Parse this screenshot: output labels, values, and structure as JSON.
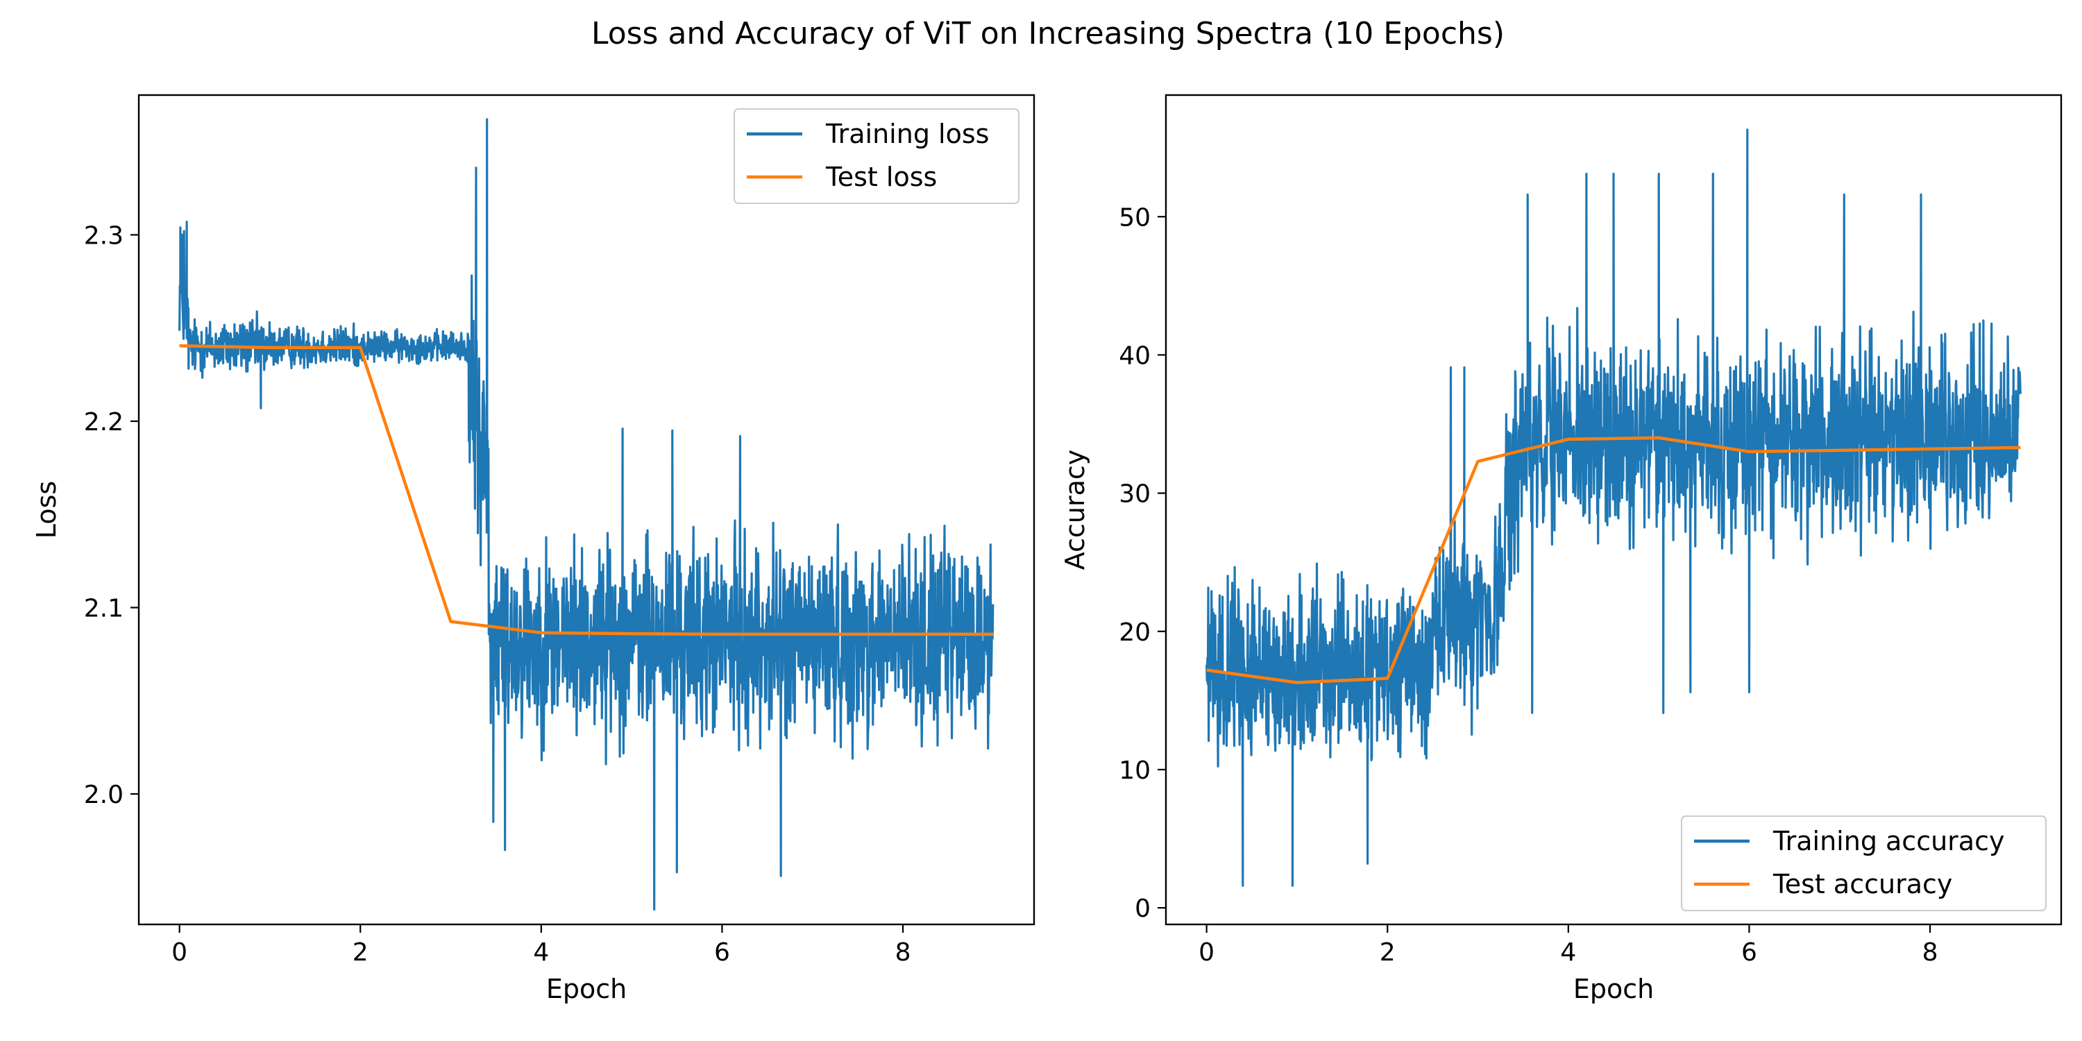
{
  "figure": {
    "title": "Loss and Accuracy of ViT on Increasing Spectra (10 Epochs)"
  },
  "colors": {
    "train": "#1f77b4",
    "test": "#ff7f0e"
  },
  "chart_data": [
    {
      "type": "line",
      "title": "",
      "xlabel": "Epoch",
      "ylabel": "Loss",
      "xlim": [
        -0.45,
        9.45
      ],
      "ylim": [
        1.93,
        2.375
      ],
      "xticks": [
        0,
        2,
        4,
        6,
        8
      ],
      "yticks": [
        2.0,
        2.1,
        2.2,
        2.3
      ],
      "ytick_labels": [
        "2.0",
        "2.1",
        "2.2",
        "2.3"
      ],
      "grid": false,
      "legend_position": "upper right",
      "series": [
        {
          "name": "Training loss",
          "kind": "noisy",
          "segments": [
            {
              "x": [
                0.0,
                0.1
              ],
              "center": [
                2.27,
                2.25
              ],
              "spread": 0.035
            },
            {
              "x": [
                0.1,
                1.0
              ],
              "center": [
                2.24,
                2.24
              ],
              "spread": 0.022
            },
            {
              "x": [
                1.0,
                2.0
              ],
              "center": [
                2.24,
                2.24
              ],
              "spread": 0.016
            },
            {
              "x": [
                2.0,
                3.2
              ],
              "center": [
                2.24,
                2.24
              ],
              "spread": 0.012
            },
            {
              "x": [
                3.2,
                3.42
              ],
              "center": [
                2.22,
                2.17
              ],
              "spread": 0.08
            },
            {
              "x": [
                3.42,
                9.0
              ],
              "center": [
                2.083,
                2.083
              ],
              "spread": 0.075
            }
          ],
          "extremes": [
            {
              "x": 0.01,
              "y": 2.304
            },
            {
              "x": 0.03,
              "y": 2.3
            },
            {
              "x": 0.05,
              "y": 2.302
            },
            {
              "x": 0.08,
              "y": 2.307
            },
            {
              "x": 0.9,
              "y": 2.207
            },
            {
              "x": 3.28,
              "y": 2.336
            },
            {
              "x": 3.3,
              "y": 2.14
            },
            {
              "x": 3.4,
              "y": 2.362
            },
            {
              "x": 3.47,
              "y": 1.985
            },
            {
              "x": 3.6,
              "y": 1.97
            },
            {
              "x": 5.25,
              "y": 1.938
            },
            {
              "x": 5.5,
              "y": 1.958
            },
            {
              "x": 6.65,
              "y": 1.956
            },
            {
              "x": 4.9,
              "y": 2.196
            },
            {
              "x": 5.45,
              "y": 2.195
            },
            {
              "x": 6.2,
              "y": 2.192
            }
          ]
        },
        {
          "name": "Test loss",
          "kind": "line",
          "x": [
            0,
            1,
            2,
            3,
            4,
            5,
            6,
            7,
            8,
            9
          ],
          "y": [
            2.2405,
            2.2395,
            2.2395,
            2.0925,
            2.0865,
            2.086,
            2.0857,
            2.0857,
            2.0857,
            2.0857
          ]
        }
      ]
    },
    {
      "type": "line",
      "title": "",
      "xlabel": "Epoch",
      "ylabel": "Accuracy",
      "xlim": [
        -0.45,
        9.45
      ],
      "ylim": [
        -1.2,
        58.8
      ],
      "xticks": [
        0,
        2,
        4,
        6,
        8
      ],
      "yticks": [
        0,
        10,
        20,
        30,
        40,
        50
      ],
      "ytick_labels": [
        "0",
        "10",
        "20",
        "30",
        "40",
        "50"
      ],
      "grid": false,
      "legend_position": "lower right",
      "series": [
        {
          "name": "Training accuracy",
          "kind": "noisy",
          "segments": [
            {
              "x": [
                0.0,
                2.5
              ],
              "center": [
                17,
                17
              ],
              "spread": 8.5
            },
            {
              "x": [
                2.5,
                3.3
              ],
              "center": [
                20,
                22
              ],
              "spread": 9.5
            },
            {
              "x": [
                3.3,
                3.55
              ],
              "center": [
                30,
                34
              ],
              "spread": 10
            },
            {
              "x": [
                3.55,
                9.0
              ],
              "center": [
                34,
                34
              ],
              "spread": 10
            }
          ],
          "extremes": [
            {
              "x": 0.4,
              "y": 1.6
            },
            {
              "x": 0.95,
              "y": 1.6
            },
            {
              "x": 1.78,
              "y": 3.2
            },
            {
              "x": 2.7,
              "y": 39.1
            },
            {
              "x": 2.85,
              "y": 39.1
            },
            {
              "x": 3.55,
              "y": 51.6
            },
            {
              "x": 4.2,
              "y": 53.1
            },
            {
              "x": 4.5,
              "y": 53.1
            },
            {
              "x": 5.0,
              "y": 53.1
            },
            {
              "x": 5.6,
              "y": 53.1
            },
            {
              "x": 5.98,
              "y": 56.3
            },
            {
              "x": 7.05,
              "y": 51.6
            },
            {
              "x": 7.9,
              "y": 51.6
            },
            {
              "x": 5.05,
              "y": 14.1
            },
            {
              "x": 5.35,
              "y": 15.6
            },
            {
              "x": 6.0,
              "y": 15.6
            },
            {
              "x": 3.6,
              "y": 14.1
            }
          ]
        },
        {
          "name": "Test accuracy",
          "kind": "line",
          "x": [
            0,
            1,
            2,
            3,
            4,
            5,
            6,
            7,
            8,
            9
          ],
          "y": [
            17.2,
            16.3,
            16.6,
            32.3,
            33.9,
            34.0,
            33.0,
            33.1,
            33.2,
            33.3
          ]
        }
      ]
    }
  ]
}
